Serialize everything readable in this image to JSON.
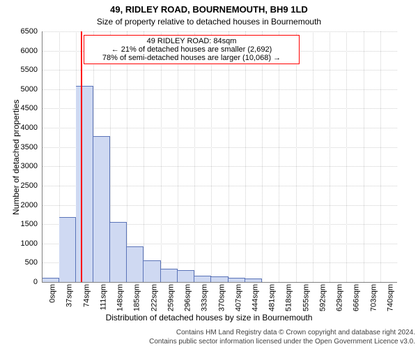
{
  "title_line1": "49, RIDLEY ROAD, BOURNEMOUTH, BH9 1LD",
  "title_line2": "Size of property relative to detached houses in Bournemouth",
  "title_fontsize": 13,
  "subtitle_fontsize": 12,
  "chart": {
    "type": "histogram",
    "xlabel": "Distribution of detached houses by size in Bournemouth",
    "ylabel": "Number of detached properties",
    "label_fontsize": 12,
    "tick_fontsize": 11,
    "ylim": [
      0,
      6500
    ],
    "ytick_step": 500,
    "xtick_start": 0,
    "xtick_step": 37,
    "xtick_count": 21,
    "xtick_unit": "sqm",
    "values": [
      110,
      1680,
      5080,
      3780,
      1560,
      920,
      560,
      350,
      300,
      160,
      150,
      100,
      90,
      0,
      0,
      0,
      0,
      0,
      0,
      0,
      0
    ],
    "marker_x_sqm": 84,
    "marker_color": "#ff0000",
    "marker_width": 2,
    "bar_fill": "#cfd9f2",
    "bar_stroke": "#5a73b8",
    "background_color": "#ffffff",
    "grid_color": "#d0d0d0",
    "axis_color": "#808080"
  },
  "annotation": {
    "lines": [
      "49 RIDLEY ROAD: 84sqm",
      "← 21% of detached houses are smaller (2,692)",
      "78% of semi-detached houses are larger (10,068) →"
    ],
    "border_color": "#ff0000",
    "border_width": 1,
    "background": "#ffffff",
    "fontsize": 11
  },
  "footer": {
    "line1": "Contains HM Land Registry data © Crown copyright and database right 2024.",
    "line2": "Contains public sector information licensed under the Open Government Licence v3.0.",
    "fontsize": 10,
    "color": "#404040"
  }
}
